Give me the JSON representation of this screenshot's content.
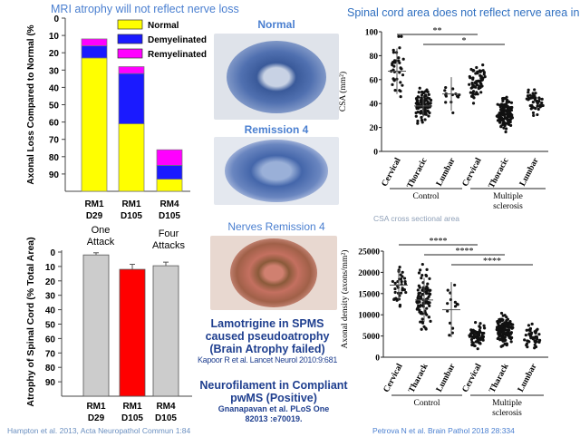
{
  "titles": {
    "left": "MRI atrophy will  not reflect nerve loss",
    "right": "Spinal cord area does not reflect nerve area in MS"
  },
  "middle": {
    "img1": "Normal",
    "img2": "Remission 4",
    "img3": "Nerves Remission 4",
    "lamo1": "Lamotrigine in SPMS",
    "lamo2": "caused pseudoatrophy",
    "lamo3": "(Brain Atrophy  failed)",
    "lamo_ref": "Kapoor R et al. Lancet Neurol 2010:9:681",
    "nf1": "Neurofilament in Compliant",
    "nf2": "pwMS (Positive)",
    "nf_ref1": "Gnanapavan et al. PLoS One",
    "nf_ref2": "82013 :e70019."
  },
  "refs": {
    "left": "Hampton et al. 2013, Acta Neuropathol Commun  1:84",
    "right": "Petrova N et al. Brain Pathol  2018 28:334",
    "csa_note": "CSA cross sectional area"
  },
  "colors": {
    "normal": "#ffff00",
    "demyelinated": "#1a1aff",
    "remyelinated": "#ff00ff",
    "highlight": "#ff0000",
    "grey": "#cccccc",
    "title": "#4a7fd0"
  },
  "chart_data": [
    {
      "type": "bar",
      "stacked": true,
      "ylabel": "Axonal Loss Compared to Normal (%",
      "yaxis_inverted": true,
      "ylim": [
        0,
        100
      ],
      "yticks": [
        0,
        10,
        20,
        30,
        40,
        50,
        60,
        70,
        80,
        90
      ],
      "categories": [
        [
          "RM1",
          "D29"
        ],
        [
          "RM1",
          "D105"
        ],
        [
          "RM4",
          "D105"
        ]
      ],
      "series": [
        {
          "name": "Normal",
          "ranges": [
            [
              23,
              100
            ],
            [
              61,
              100
            ],
            [
              93,
              100
            ]
          ]
        },
        {
          "name": "Demyelinated",
          "ranges": [
            [
              16,
              23
            ],
            [
              32,
              61
            ],
            [
              85,
              93
            ]
          ]
        },
        {
          "name": "Remyelinated",
          "ranges": [
            [
              12,
              16
            ],
            [
              28,
              32
            ],
            [
              76,
              85
            ]
          ]
        }
      ],
      "legend": "top-right"
    },
    {
      "type": "bar",
      "ylabel": "Atrophy of Spinal Cord (% Total Area)",
      "yaxis_inverted": true,
      "ylim": [
        0,
        100
      ],
      "yticks": [
        0,
        10,
        20,
        30,
        40,
        50,
        60,
        70,
        80,
        90
      ],
      "categories": [
        [
          "RM1",
          "D29"
        ],
        [
          "RM1",
          "D105"
        ],
        [
          "RM4",
          "D105"
        ]
      ],
      "values": [
        2,
        12,
        9.5
      ],
      "errors": [
        1.5,
        3.5,
        2.5
      ],
      "annotations": [
        {
          "text": [
            "One",
            "Attack"
          ],
          "category": 0
        },
        {
          "text": [
            "Four",
            "Attacks"
          ],
          "category": 2
        }
      ]
    },
    {
      "type": "scatter",
      "ylabel": "CSA (mm²)",
      "ylim": [
        0,
        100
      ],
      "yticks": [
        0,
        20,
        40,
        60,
        80,
        100
      ],
      "categories": [
        "Cervical",
        "Thoracic",
        "Lumbar",
        "Cervical",
        "Thoracic",
        "Lumbar"
      ],
      "groups": [
        {
          "label": "Control",
          "span": [
            0,
            2
          ]
        },
        {
          "label": "Multiple sclerosis",
          "span": [
            3,
            5
          ]
        }
      ],
      "summary": [
        {
          "mean": 67,
          "sd": 19,
          "min": 34,
          "max": 96,
          "n": 35
        },
        {
          "mean": 38,
          "sd": 9,
          "min": 16,
          "max": 68,
          "n": 90
        },
        {
          "mean": 48,
          "sd": 14,
          "min": 29,
          "max": 69,
          "n": 14
        },
        {
          "mean": 57,
          "sd": 10,
          "min": 37,
          "max": 82,
          "n": 65
        },
        {
          "mean": 31,
          "sd": 9,
          "min": 15,
          "max": 61,
          "n": 200
        },
        {
          "mean": 41,
          "sd": 9,
          "min": 17,
          "max": 59,
          "n": 45
        }
      ],
      "significance": [
        {
          "label": "**",
          "from": 0,
          "to": 3
        },
        {
          "label": "*",
          "from": 1,
          "to": 4
        }
      ]
    },
    {
      "type": "scatter",
      "ylabel": "Axonal density (axons/mm²)",
      "ylim": [
        0,
        25000
      ],
      "yticks": [
        0,
        5000,
        10000,
        15000,
        20000,
        25000
      ],
      "categories": [
        "Cervical",
        "Tharack",
        "Lumbar",
        "Cervical",
        "Tharack",
        "Lumbar"
      ],
      "groups": [
        {
          "label": "Control",
          "span": [
            0,
            2
          ]
        },
        {
          "label": "Multiple sclerosis",
          "span": [
            3,
            5
          ]
        }
      ],
      "summary": [
        {
          "mean": 17000,
          "sd": 3500,
          "min": 12000,
          "max": 23800,
          "n": 35
        },
        {
          "mean": 13500,
          "sd": 5200,
          "min": 4800,
          "max": 23500,
          "n": 90
        },
        {
          "mean": 11200,
          "sd": 6500,
          "min": 4600,
          "max": 20200,
          "n": 14
        },
        {
          "mean": 5000,
          "sd": 1800,
          "min": 1800,
          "max": 10300,
          "n": 65
        },
        {
          "mean": 6300,
          "sd": 2400,
          "min": 1800,
          "max": 15000,
          "n": 200
        },
        {
          "mean": 4800,
          "sd": 2300,
          "min": 500,
          "max": 12000,
          "n": 45
        }
      ],
      "significance": [
        {
          "label": "****",
          "from": 0,
          "to": 3
        },
        {
          "label": "****",
          "from": 1,
          "to": 4
        },
        {
          "label": "****",
          "from": 2,
          "to": 5
        }
      ]
    }
  ]
}
